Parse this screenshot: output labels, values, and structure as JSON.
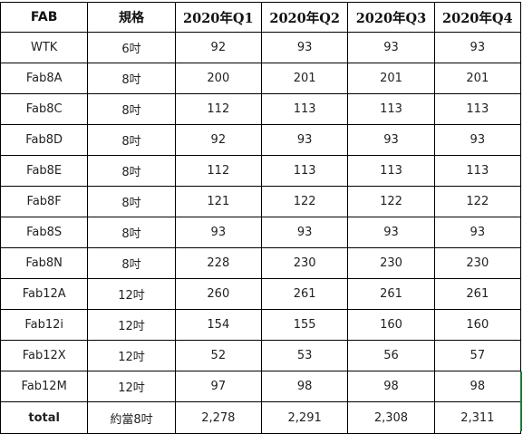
{
  "chart_data": {
    "type": "table",
    "columns": [
      "FAB",
      "規格",
      "2020年Q1",
      "2020年Q2",
      "2020年Q3",
      "2020年Q4"
    ],
    "rows": [
      [
        "WTK",
        "6吋",
        "92",
        "93",
        "93",
        "93"
      ],
      [
        "Fab8A",
        "8吋",
        "200",
        "201",
        "201",
        "201"
      ],
      [
        "Fab8C",
        "8吋",
        "112",
        "113",
        "113",
        "113"
      ],
      [
        "Fab8D",
        "8吋",
        "92",
        "93",
        "93",
        "93"
      ],
      [
        "Fab8E",
        "8吋",
        "112",
        "113",
        "113",
        "113"
      ],
      [
        "Fab8F",
        "8吋",
        "121",
        "122",
        "122",
        "122"
      ],
      [
        "Fab8S",
        "8吋",
        "93",
        "93",
        "93",
        "93"
      ],
      [
        "Fab8N",
        "8吋",
        "228",
        "230",
        "230",
        "230"
      ],
      [
        "Fab12A",
        "12吋",
        "260",
        "261",
        "261",
        "261"
      ],
      [
        "Fab12i",
        "12吋",
        "154",
        "155",
        "160",
        "160"
      ],
      [
        "Fab12X",
        "12吋",
        "52",
        "53",
        "56",
        "57"
      ],
      [
        "Fab12M",
        "12吋",
        "97",
        "98",
        "98",
        "98"
      ],
      [
        "total",
        "約當8吋",
        "2,278",
        "2,291",
        "2,308",
        "2,311"
      ]
    ],
    "grid": true
  },
  "colors": {
    "border": "#000000",
    "text": "#222222",
    "selection_edge": "#1f7a3a"
  }
}
